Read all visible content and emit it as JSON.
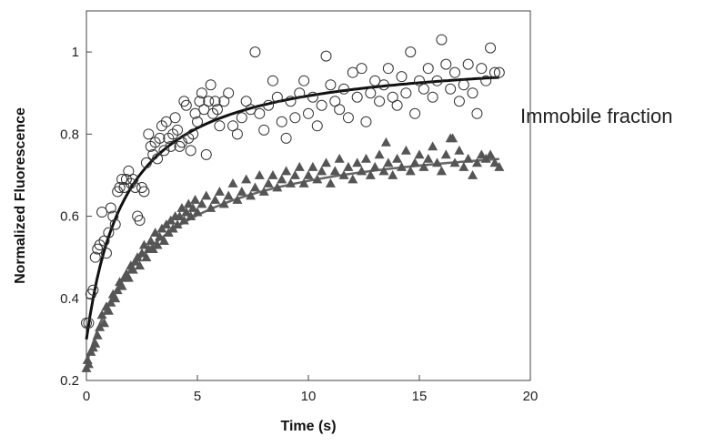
{
  "chart_data": {
    "type": "scatter",
    "xlabel": "Time (s)",
    "ylabel": "Normalized Fluorescence",
    "xlim": [
      0,
      20
    ],
    "ylim": [
      0.2,
      1.1
    ],
    "xticks": [
      0,
      5,
      10,
      15,
      20
    ],
    "yticks": [
      0.2,
      0.4,
      0.6,
      0.8,
      1
    ],
    "xtick_labels": [
      "0",
      "5",
      "10",
      "15",
      "20"
    ],
    "ytick_labels": [
      "0.2",
      "0.4",
      "0.6",
      "0.8",
      "1"
    ],
    "grid": false,
    "annotation": "Immobile fraction",
    "series": [
      {
        "marker": "open-circle",
        "color": "#333333",
        "points": [
          [
            0.0,
            0.34
          ],
          [
            0.1,
            0.34
          ],
          [
            0.2,
            0.41
          ],
          [
            0.3,
            0.42
          ],
          [
            0.4,
            0.5
          ],
          [
            0.5,
            0.52
          ],
          [
            0.6,
            0.53
          ],
          [
            0.7,
            0.61
          ],
          [
            0.8,
            0.54
          ],
          [
            0.9,
            0.51
          ],
          [
            1.0,
            0.56
          ],
          [
            1.1,
            0.62
          ],
          [
            1.2,
            0.6
          ],
          [
            1.3,
            0.58
          ],
          [
            1.4,
            0.66
          ],
          [
            1.5,
            0.67
          ],
          [
            1.6,
            0.69
          ],
          [
            1.7,
            0.67
          ],
          [
            1.8,
            0.69
          ],
          [
            1.9,
            0.71
          ],
          [
            2.0,
            0.68
          ],
          [
            2.1,
            0.69
          ],
          [
            2.2,
            0.67
          ],
          [
            2.3,
            0.6
          ],
          [
            2.4,
            0.59
          ],
          [
            2.5,
            0.67
          ],
          [
            2.6,
            0.66
          ],
          [
            2.7,
            0.73
          ],
          [
            2.8,
            0.8
          ],
          [
            2.9,
            0.77
          ],
          [
            3.0,
            0.75
          ],
          [
            3.1,
            0.78
          ],
          [
            3.2,
            0.74
          ],
          [
            3.3,
            0.79
          ],
          [
            3.4,
            0.82
          ],
          [
            3.5,
            0.76
          ],
          [
            3.6,
            0.83
          ],
          [
            3.7,
            0.79
          ],
          [
            3.8,
            0.77
          ],
          [
            3.9,
            0.8
          ],
          [
            4.0,
            0.84
          ],
          [
            4.1,
            0.81
          ],
          [
            4.2,
            0.77
          ],
          [
            4.3,
            0.78
          ],
          [
            4.4,
            0.88
          ],
          [
            4.5,
            0.87
          ],
          [
            4.6,
            0.79
          ],
          [
            4.7,
            0.76
          ],
          [
            4.8,
            0.8
          ],
          [
            4.9,
            0.85
          ],
          [
            5.0,
            0.83
          ],
          [
            5.1,
            0.88
          ],
          [
            5.2,
            0.9
          ],
          [
            5.3,
            0.86
          ],
          [
            5.4,
            0.75
          ],
          [
            5.5,
            0.88
          ],
          [
            5.6,
            0.92
          ],
          [
            5.7,
            0.85
          ],
          [
            5.8,
            0.88
          ],
          [
            5.9,
            0.86
          ],
          [
            6.0,
            0.82
          ],
          [
            6.2,
            0.88
          ],
          [
            6.4,
            0.9
          ],
          [
            6.6,
            0.82
          ],
          [
            6.8,
            0.8
          ],
          [
            7.0,
            0.84
          ],
          [
            7.2,
            0.88
          ],
          [
            7.4,
            0.86
          ],
          [
            7.6,
            1.0
          ],
          [
            7.8,
            0.85
          ],
          [
            8.0,
            0.81
          ],
          [
            8.2,
            0.87
          ],
          [
            8.4,
            0.93
          ],
          [
            8.6,
            0.89
          ],
          [
            8.8,
            0.83
          ],
          [
            9.0,
            0.79
          ],
          [
            9.2,
            0.88
          ],
          [
            9.4,
            0.84
          ],
          [
            9.6,
            0.9
          ],
          [
            9.8,
            0.93
          ],
          [
            10.0,
            0.85
          ],
          [
            10.2,
            0.89
          ],
          [
            10.4,
            0.82
          ],
          [
            10.6,
            0.87
          ],
          [
            10.8,
            0.99
          ],
          [
            11.0,
            0.92
          ],
          [
            11.2,
            0.88
          ],
          [
            11.4,
            0.86
          ],
          [
            11.6,
            0.91
          ],
          [
            11.8,
            0.84
          ],
          [
            12.0,
            0.95
          ],
          [
            12.2,
            0.89
          ],
          [
            12.4,
            0.96
          ],
          [
            12.6,
            0.83
          ],
          [
            12.8,
            0.9
          ],
          [
            13.0,
            0.93
          ],
          [
            13.2,
            0.88
          ],
          [
            13.4,
            0.92
          ],
          [
            13.6,
            0.96
          ],
          [
            13.8,
            0.89
          ],
          [
            14.0,
            0.87
          ],
          [
            14.2,
            0.94
          ],
          [
            14.4,
            0.9
          ],
          [
            14.6,
            1.0
          ],
          [
            14.8,
            0.85
          ],
          [
            15.0,
            0.93
          ],
          [
            15.2,
            0.91
          ],
          [
            15.4,
            0.96
          ],
          [
            15.6,
            0.89
          ],
          [
            15.8,
            0.93
          ],
          [
            16.0,
            1.03
          ],
          [
            16.2,
            0.97
          ],
          [
            16.4,
            0.91
          ],
          [
            16.6,
            0.95
          ],
          [
            16.8,
            0.88
          ],
          [
            17.0,
            0.92
          ],
          [
            17.2,
            0.97
          ],
          [
            17.4,
            0.9
          ],
          [
            17.6,
            0.85
          ],
          [
            17.8,
            0.96
          ],
          [
            18.0,
            0.93
          ],
          [
            18.2,
            1.01
          ],
          [
            18.4,
            0.95
          ],
          [
            18.6,
            0.95
          ]
        ]
      },
      {
        "marker": "filled-triangle",
        "color": "#555555",
        "points": [
          [
            0.0,
            0.23
          ],
          [
            0.05,
            0.25
          ],
          [
            0.1,
            0.24
          ],
          [
            0.2,
            0.27
          ],
          [
            0.3,
            0.28
          ],
          [
            0.4,
            0.29
          ],
          [
            0.5,
            0.31
          ],
          [
            0.6,
            0.33
          ],
          [
            0.7,
            0.36
          ],
          [
            0.8,
            0.34
          ],
          [
            0.9,
            0.38
          ],
          [
            1.0,
            0.37
          ],
          [
            1.1,
            0.39
          ],
          [
            1.2,
            0.41
          ],
          [
            1.3,
            0.4
          ],
          [
            1.4,
            0.42
          ],
          [
            1.5,
            0.44
          ],
          [
            1.6,
            0.43
          ],
          [
            1.7,
            0.45
          ],
          [
            1.8,
            0.46
          ],
          [
            1.9,
            0.45
          ],
          [
            2.0,
            0.48
          ],
          [
            2.1,
            0.47
          ],
          [
            2.2,
            0.49
          ],
          [
            2.3,
            0.5
          ],
          [
            2.4,
            0.48
          ],
          [
            2.5,
            0.51
          ],
          [
            2.6,
            0.53
          ],
          [
            2.7,
            0.5
          ],
          [
            2.8,
            0.52
          ],
          [
            2.9,
            0.54
          ],
          [
            3.0,
            0.52
          ],
          [
            3.1,
            0.56
          ],
          [
            3.2,
            0.53
          ],
          [
            3.3,
            0.55
          ],
          [
            3.4,
            0.57
          ],
          [
            3.5,
            0.54
          ],
          [
            3.6,
            0.58
          ],
          [
            3.7,
            0.56
          ],
          [
            3.8,
            0.59
          ],
          [
            3.9,
            0.57
          ],
          [
            4.0,
            0.6
          ],
          [
            4.1,
            0.58
          ],
          [
            4.2,
            0.6
          ],
          [
            4.3,
            0.62
          ],
          [
            4.4,
            0.59
          ],
          [
            4.5,
            0.61
          ],
          [
            4.6,
            0.63
          ],
          [
            4.7,
            0.6
          ],
          [
            4.8,
            0.62
          ],
          [
            4.9,
            0.64
          ],
          [
            5.0,
            0.61
          ],
          [
            5.2,
            0.63
          ],
          [
            5.4,
            0.65
          ],
          [
            5.6,
            0.62
          ],
          [
            5.8,
            0.64
          ],
          [
            6.0,
            0.66
          ],
          [
            6.2,
            0.63
          ],
          [
            6.4,
            0.65
          ],
          [
            6.6,
            0.68
          ],
          [
            6.8,
            0.64
          ],
          [
            7.0,
            0.66
          ],
          [
            7.2,
            0.69
          ],
          [
            7.4,
            0.65
          ],
          [
            7.6,
            0.67
          ],
          [
            7.8,
            0.7
          ],
          [
            8.0,
            0.66
          ],
          [
            8.2,
            0.68
          ],
          [
            8.4,
            0.7
          ],
          [
            8.6,
            0.67
          ],
          [
            8.8,
            0.69
          ],
          [
            9.0,
            0.71
          ],
          [
            9.2,
            0.68
          ],
          [
            9.4,
            0.7
          ],
          [
            9.6,
            0.72
          ],
          [
            9.8,
            0.68
          ],
          [
            10.0,
            0.7
          ],
          [
            10.2,
            0.72
          ],
          [
            10.4,
            0.69
          ],
          [
            10.6,
            0.71
          ],
          [
            10.8,
            0.73
          ],
          [
            11.0,
            0.68
          ],
          [
            11.2,
            0.71
          ],
          [
            11.4,
            0.74
          ],
          [
            11.6,
            0.7
          ],
          [
            11.8,
            0.72
          ],
          [
            12.0,
            0.69
          ],
          [
            12.2,
            0.73
          ],
          [
            12.4,
            0.71
          ],
          [
            12.6,
            0.74
          ],
          [
            12.8,
            0.7
          ],
          [
            13.0,
            0.72
          ],
          [
            13.2,
            0.75
          ],
          [
            13.4,
            0.71
          ],
          [
            13.5,
            0.78
          ],
          [
            13.6,
            0.73
          ],
          [
            13.8,
            0.7
          ],
          [
            14.0,
            0.74
          ],
          [
            14.2,
            0.72
          ],
          [
            14.4,
            0.76
          ],
          [
            14.6,
            0.71
          ],
          [
            14.8,
            0.73
          ],
          [
            15.0,
            0.75
          ],
          [
            15.2,
            0.72
          ],
          [
            15.4,
            0.74
          ],
          [
            15.6,
            0.77
          ],
          [
            15.8,
            0.73
          ],
          [
            16.0,
            0.71
          ],
          [
            16.2,
            0.75
          ],
          [
            16.4,
            0.79
          ],
          [
            16.5,
            0.79
          ],
          [
            16.6,
            0.73
          ],
          [
            16.8,
            0.76
          ],
          [
            17.0,
            0.72
          ],
          [
            17.2,
            0.74
          ],
          [
            17.4,
            0.7
          ],
          [
            17.6,
            0.73
          ],
          [
            17.8,
            0.75
          ],
          [
            18.0,
            0.74
          ],
          [
            18.2,
            0.75
          ],
          [
            18.4,
            0.73
          ],
          [
            18.6,
            0.72
          ]
        ]
      }
    ],
    "fit_curves": [
      {
        "color": "#111111",
        "width": 3,
        "y0": 0.3,
        "ymax": 1.0,
        "tau": 1.8,
        "xrange": [
          0,
          18.6
        ]
      },
      {
        "color": "#666666",
        "width": 2.5,
        "y0": 0.24,
        "ymax": 0.82,
        "tau": 3.0,
        "xrange": [
          0,
          18.6
        ]
      }
    ]
  }
}
